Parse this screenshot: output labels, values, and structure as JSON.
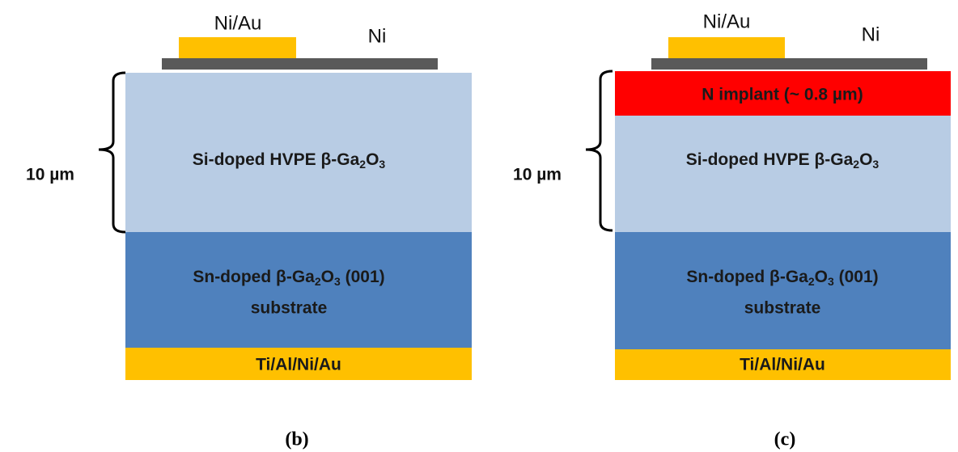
{
  "panels": [
    {
      "label": "(b)",
      "top_contact": "Ni/Au",
      "metal": "Ni",
      "thickness": "10 µm",
      "epi": [
        "Si-doped HVPE β-Ga",
        "2",
        "O",
        "3"
      ],
      "substrate": [
        "Sn-doped β-Ga",
        "2",
        "O",
        "3",
        " (001)",
        "substrate"
      ],
      "back_contact": "Ti/Al/Ni/Au"
    },
    {
      "label": "(c)",
      "top_contact": "Ni/Au",
      "metal": "Ni",
      "thickness": "10 µm",
      "implant": "N implant (~ 0.8 µm)",
      "epi": [
        "Si-doped HVPE β-Ga",
        "2",
        "O",
        "3"
      ],
      "substrate": [
        "Sn-doped β-Ga",
        "2",
        "O",
        "3",
        " (001)",
        "substrate"
      ],
      "back_contact": "Ti/Al/Ni/Au"
    }
  ]
}
